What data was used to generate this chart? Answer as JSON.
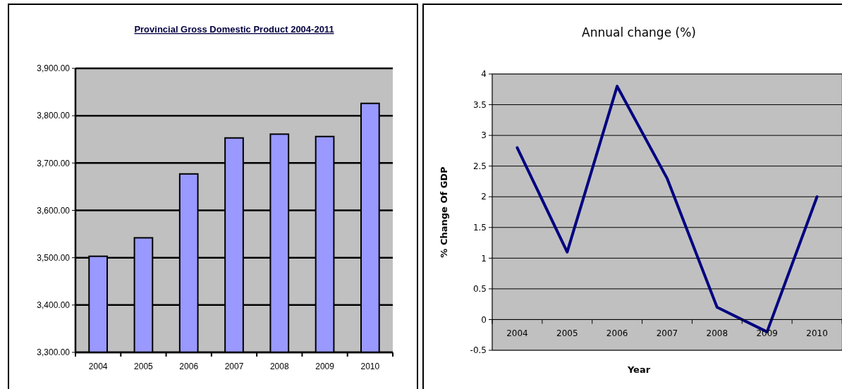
{
  "chart_data": [
    {
      "type": "bar",
      "title": "Provincial Gross Domestic Product 2004-2011",
      "categories": [
        "2004",
        "2005",
        "2006",
        "2007",
        "2008",
        "2009",
        "2010"
      ],
      "values": [
        3503,
        3542,
        3677,
        3753,
        3761,
        3756,
        3826
      ],
      "color": "#9999ff",
      "ylim": [
        3300,
        3900
      ],
      "yticks": [
        {
          "value": 3300,
          "label": "3,300.00"
        },
        {
          "value": 3400,
          "label": "3,400.00"
        },
        {
          "value": 3500,
          "label": "3,500.00"
        },
        {
          "value": 3600,
          "label": "3,600.00"
        },
        {
          "value": 3700,
          "label": "3,700.00"
        },
        {
          "value": 3800,
          "label": "3,800.00"
        },
        {
          "value": 3900,
          "label": "3,900.00"
        }
      ],
      "grid": "y"
    },
    {
      "type": "line",
      "title": "Annual change (%)",
      "xlabel": "Year",
      "ylabel": "% Change Of GDP",
      "categories": [
        "2004",
        "2005",
        "2006",
        "2007",
        "2008",
        "2009",
        "2010"
      ],
      "values": [
        2.8,
        1.1,
        3.8,
        2.3,
        0.2,
        -0.2,
        2.0
      ],
      "color": "#000080",
      "ylim": [
        -0.5,
        4
      ],
      "yticks": [
        -0.5,
        0,
        0.5,
        1,
        1.5,
        2,
        2.5,
        3,
        3.5,
        4
      ],
      "grid": "y"
    }
  ]
}
